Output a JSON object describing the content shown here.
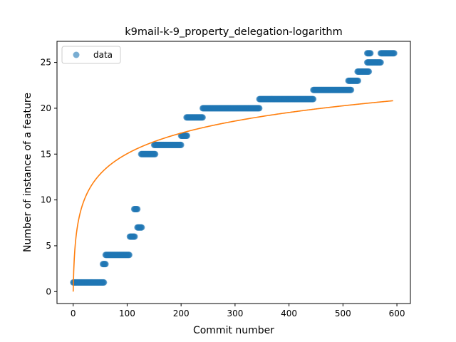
{
  "chart_data": {
    "type": "scatter",
    "title": "k9mail-k-9_property_delegation-logarithm",
    "xlabel": "Commit number",
    "ylabel": "Number of instance of a feature",
    "xlim": [
      -30,
      625
    ],
    "ylim": [
      -1.3,
      27.3
    ],
    "xticks": [
      0,
      100,
      200,
      300,
      400,
      500,
      600
    ],
    "yticks": [
      0,
      5,
      10,
      15,
      20,
      25
    ],
    "grid": false,
    "legend": {
      "placement": "top-left",
      "entries": [
        "data"
      ]
    },
    "colors": {
      "data": "#1f77b4",
      "fit": "#ff7f0e"
    },
    "series": [
      {
        "name": "data",
        "kind": "scatter",
        "segments": [
          {
            "x_start": 0,
            "x_end": 57,
            "y": 1
          },
          {
            "x_start": 55,
            "x_end": 60,
            "y": 3
          },
          {
            "x_start": 60,
            "x_end": 104,
            "y": 4
          },
          {
            "x_start": 105,
            "x_end": 114,
            "y": 6
          },
          {
            "x_start": 113,
            "x_end": 119,
            "y": 9
          },
          {
            "x_start": 119,
            "x_end": 127,
            "y": 7
          },
          {
            "x_start": 126,
            "x_end": 152,
            "y": 15
          },
          {
            "x_start": 150,
            "x_end": 200,
            "y": 16
          },
          {
            "x_start": 200,
            "x_end": 211,
            "y": 17
          },
          {
            "x_start": 210,
            "x_end": 240,
            "y": 19
          },
          {
            "x_start": 240,
            "x_end": 345,
            "y": 20
          },
          {
            "x_start": 345,
            "x_end": 445,
            "y": 21
          },
          {
            "x_start": 445,
            "x_end": 515,
            "y": 22
          },
          {
            "x_start": 510,
            "x_end": 528,
            "y": 23
          },
          {
            "x_start": 527,
            "x_end": 548,
            "y": 24
          },
          {
            "x_start": 545,
            "x_end": 570,
            "y": 25
          },
          {
            "x_start": 570,
            "x_end": 595,
            "y": 26
          },
          {
            "x_start": 545,
            "x_end": 551,
            "y": 26
          }
        ]
      },
      {
        "kind": "line",
        "model": "logarithmic",
        "a": 3.26,
        "b": 0.0,
        "x_range": [
          0,
          593
        ]
      }
    ]
  }
}
